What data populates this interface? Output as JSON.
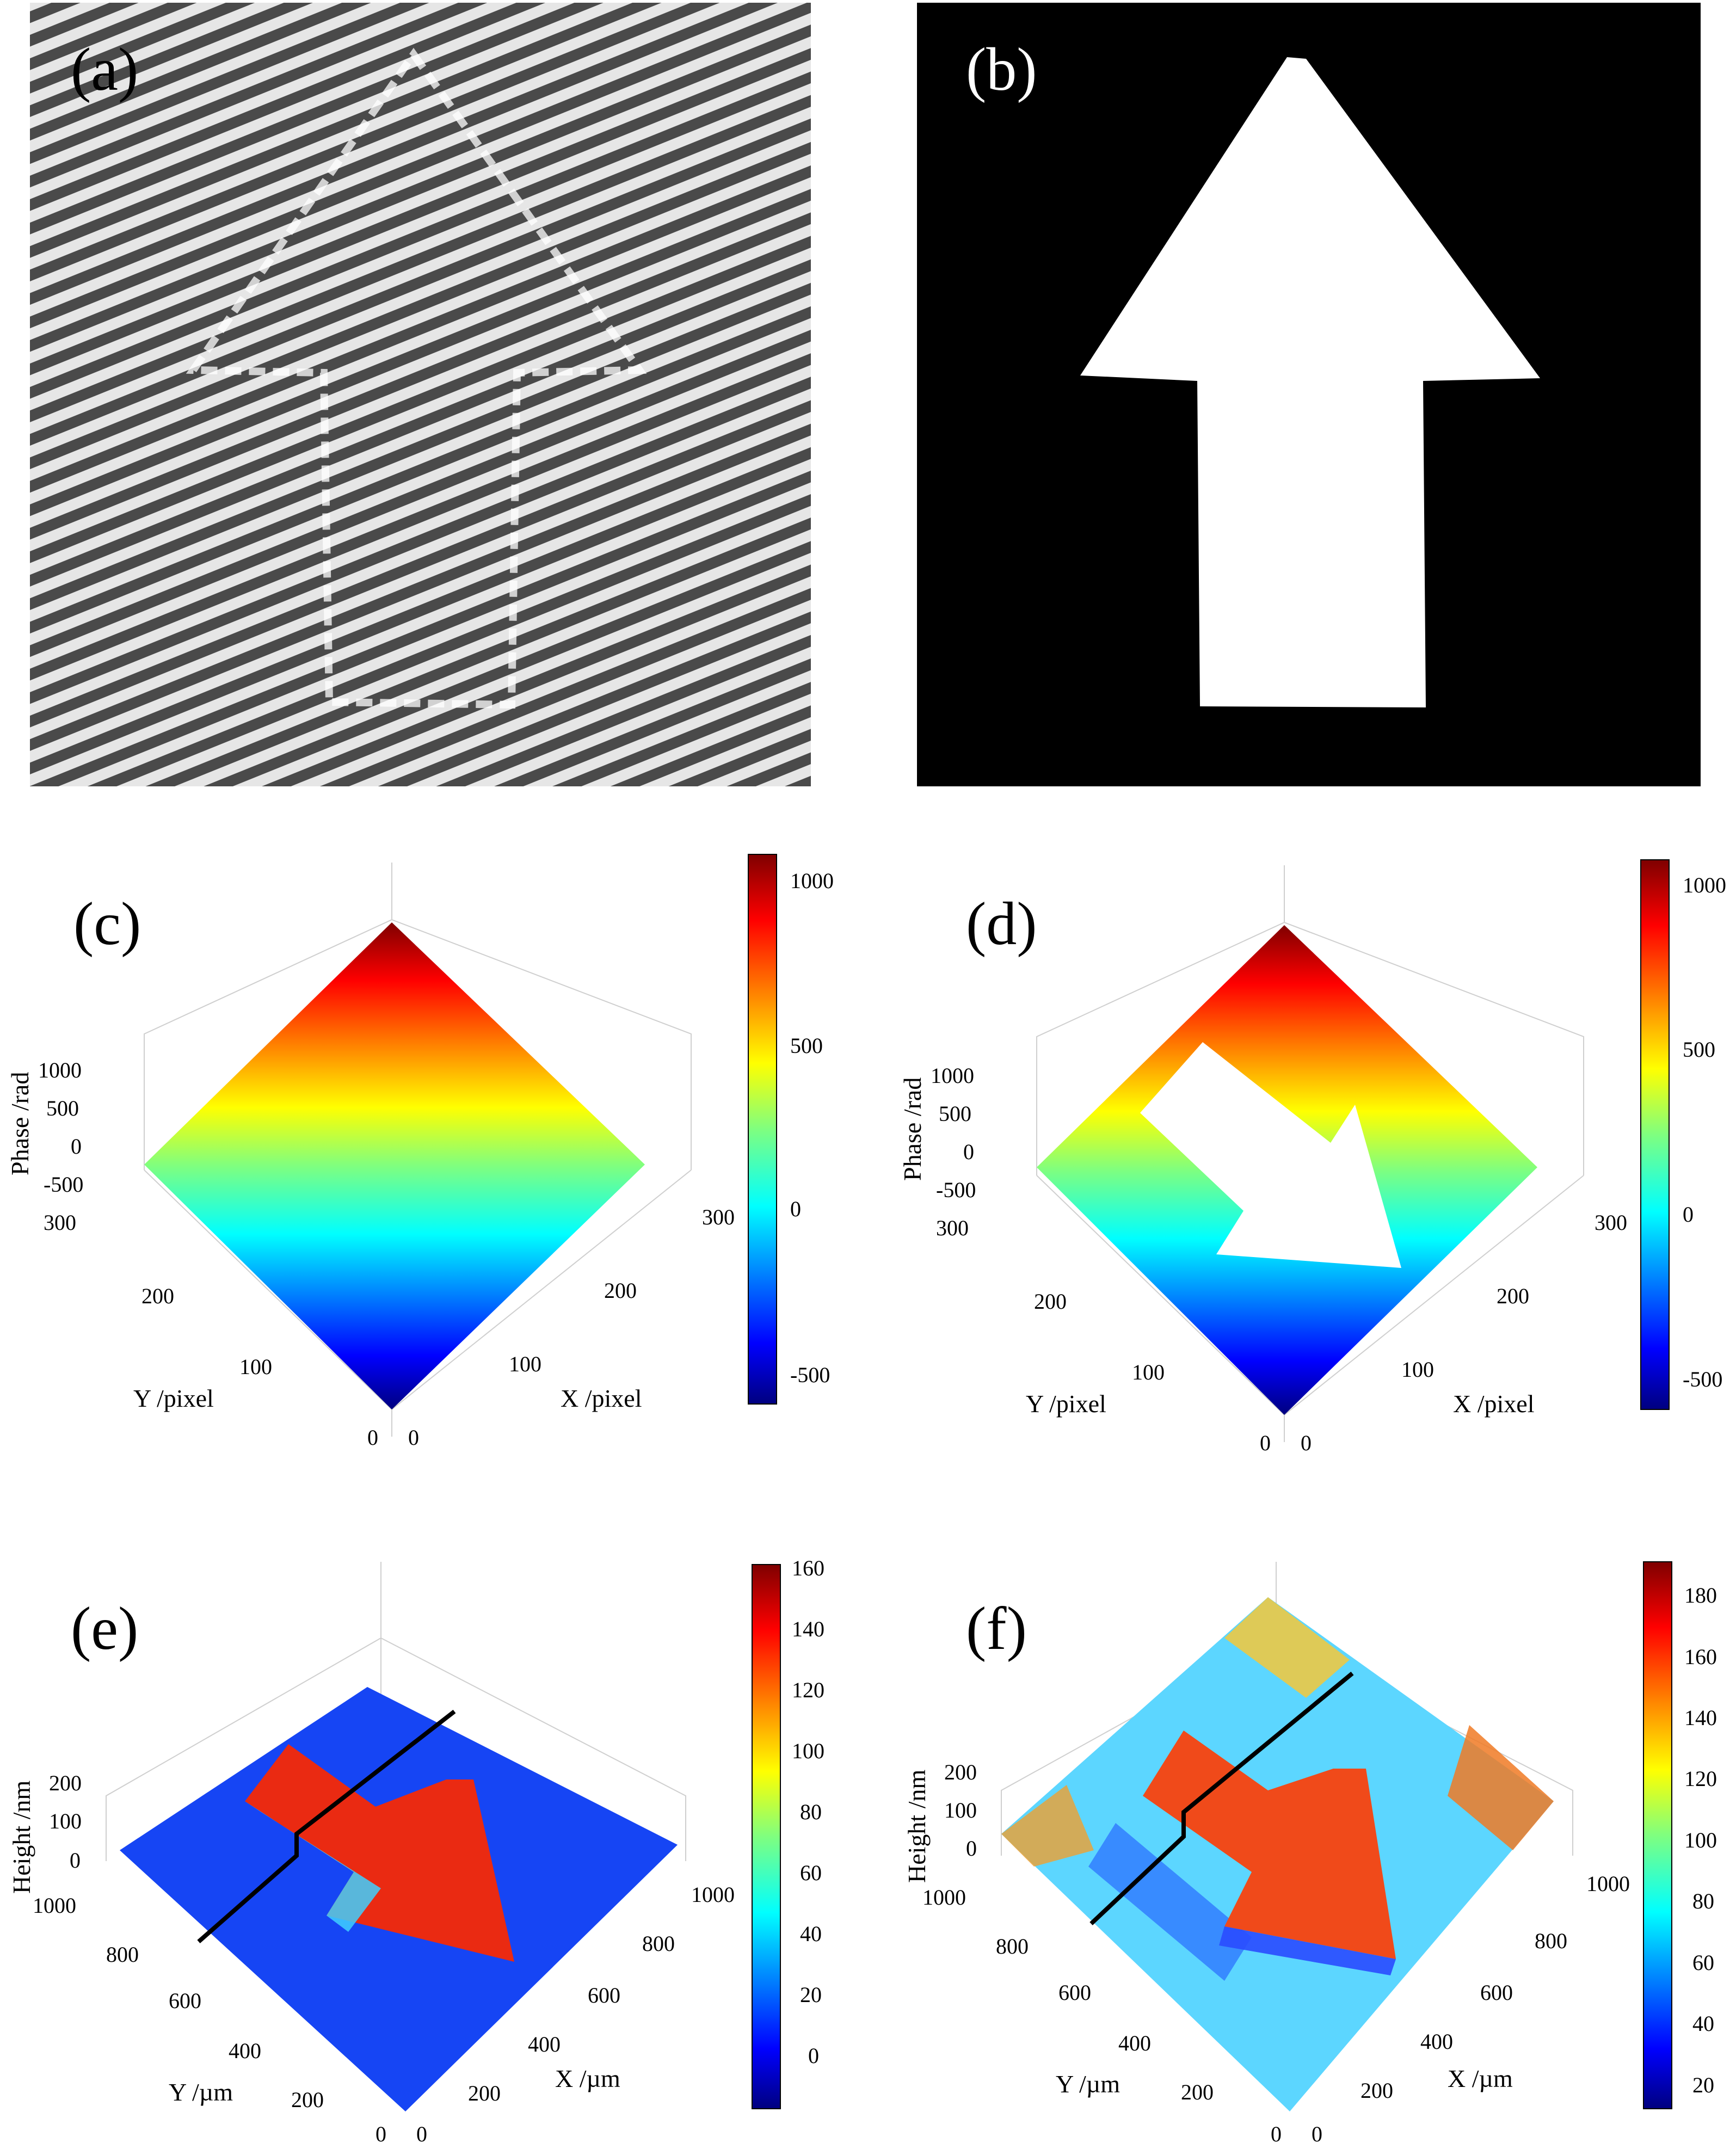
{
  "panels": {
    "a": {
      "label": "(a)"
    },
    "b": {
      "label": "(b)"
    },
    "c": {
      "label": "(c)"
    },
    "d": {
      "label": "(d)"
    },
    "e": {
      "label": "(e)"
    },
    "f": {
      "label": "(f)"
    }
  },
  "colors": {
    "jet": [
      "#00007f",
      "#0000ff",
      "#007fff",
      "#00ffff",
      "#7fff7f",
      "#ffff00",
      "#ff7f00",
      "#ff0000",
      "#7f0000"
    ],
    "background_b": "#000000",
    "mask": "#ffffff",
    "profile_line": "#000000"
  },
  "chart_data": [
    {
      "panel": "c",
      "type": "surface",
      "zlabel": "Phase /rad",
      "ylabel": "Y /pixel",
      "xlabel": "X /pixel",
      "z_ticks": [
        "1000",
        "500",
        "0",
        "-500"
      ],
      "y_ticks": [
        "300",
        "200",
        "100",
        "0"
      ],
      "x_ticks": [
        "300",
        "200",
        "100",
        "0"
      ],
      "colorbar_ticks": [
        "1000",
        "500",
        "0",
        "-500"
      ],
      "colorbar_range": [
        -600,
        1080
      ]
    },
    {
      "panel": "d",
      "type": "surface",
      "zlabel": "Phase /rad",
      "ylabel": "Y /pixel",
      "xlabel": "X /pixel",
      "z_ticks": [
        "1000",
        "500",
        "0",
        "-500"
      ],
      "y_ticks": [
        "300",
        "200",
        "100",
        "0"
      ],
      "x_ticks": [
        "300",
        "200",
        "100",
        "0"
      ],
      "colorbar_ticks": [
        "1000",
        "500",
        "0",
        "-500"
      ],
      "colorbar_range": [
        -600,
        1080
      ]
    },
    {
      "panel": "e",
      "type": "surface",
      "zlabel": "Height /nm",
      "ylabel": "Y /µm",
      "xlabel": "X /µm",
      "z_ticks": [
        "200",
        "100",
        "0"
      ],
      "y_ticks": [
        "1000",
        "800",
        "600",
        "400",
        "200",
        "0"
      ],
      "x_ticks": [
        "1000",
        "800",
        "600",
        "400",
        "200",
        "0"
      ],
      "colorbar_ticks": [
        "160",
        "140",
        "120",
        "100",
        "80",
        "60",
        "40",
        "20",
        "0"
      ],
      "colorbar_range": [
        -15,
        160
      ]
    },
    {
      "panel": "f",
      "type": "surface",
      "zlabel": "Height /nm",
      "ylabel": "Y /µm",
      "xlabel": "X /µm",
      "z_ticks": [
        "200",
        "100",
        "0"
      ],
      "y_ticks": [
        "1000",
        "800",
        "600",
        "400",
        "200",
        "0"
      ],
      "x_ticks": [
        "1000",
        "800",
        "600",
        "400",
        "200",
        "0"
      ],
      "colorbar_ticks": [
        "180",
        "160",
        "140",
        "120",
        "100",
        "80",
        "60",
        "40",
        "20"
      ],
      "colorbar_range": [
        8,
        190
      ]
    }
  ]
}
